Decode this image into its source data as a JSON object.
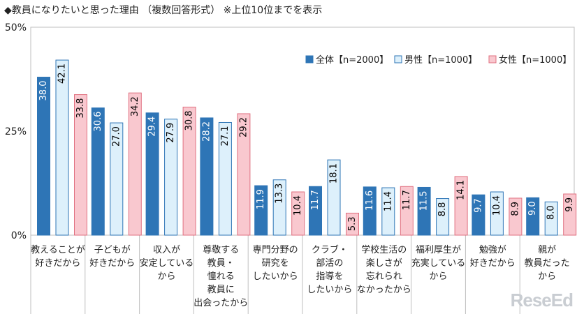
{
  "header": {
    "title": "◆教員になりたいと思った理由 （複数回答形式） ※上位10位までを表示"
  },
  "watermark": "ReseEd",
  "chart_data": {
    "type": "bar",
    "ylim": [
      0,
      50
    ],
    "yticks": [
      0,
      25,
      50
    ],
    "ytick_labels": [
      "0%",
      "25%",
      "50%"
    ],
    "grid": false,
    "legend_placement": "top-right",
    "categories": [
      [
        "教えることが",
        "好きだから"
      ],
      [
        "子どもが",
        "好きだから"
      ],
      [
        "収入が",
        "安定している",
        "から"
      ],
      [
        "尊敬する",
        "教員・",
        "憧れる",
        "教員に",
        "出会ったから"
      ],
      [
        "専門分野の",
        "研究を",
        "したいから"
      ],
      [
        "クラブ・",
        "部活の",
        "指導を",
        "したいから"
      ],
      [
        "学校生活の",
        "楽しさが",
        "忘れられ",
        "なかったから"
      ],
      [
        "福利厚生が",
        "充実している",
        "から"
      ],
      [
        "勉強が",
        "好きだから"
      ],
      [
        "親が",
        "教員だった",
        "から"
      ]
    ],
    "series": [
      {
        "name": "全体【n=2000】",
        "color": "#2e75b6",
        "border": "#2e75b6",
        "label_color": "#ffffff",
        "values": [
          38.0,
          30.6,
          29.4,
          28.2,
          11.9,
          11.7,
          11.6,
          11.5,
          9.7,
          9.0
        ]
      },
      {
        "name": "男性【n=1000】",
        "color": "#ddf0fb",
        "border": "#2e75b6",
        "label_color": "#000000",
        "values": [
          42.1,
          27.0,
          27.9,
          27.1,
          13.3,
          18.1,
          11.4,
          8.8,
          10.4,
          8.0
        ]
      },
      {
        "name": "女性【n=1000】",
        "color": "#f9c8cf",
        "border": "#e07080",
        "label_color": "#000000",
        "values": [
          33.8,
          34.2,
          30.8,
          29.2,
          10.4,
          5.3,
          11.7,
          14.1,
          8.9,
          9.9
        ]
      }
    ]
  }
}
